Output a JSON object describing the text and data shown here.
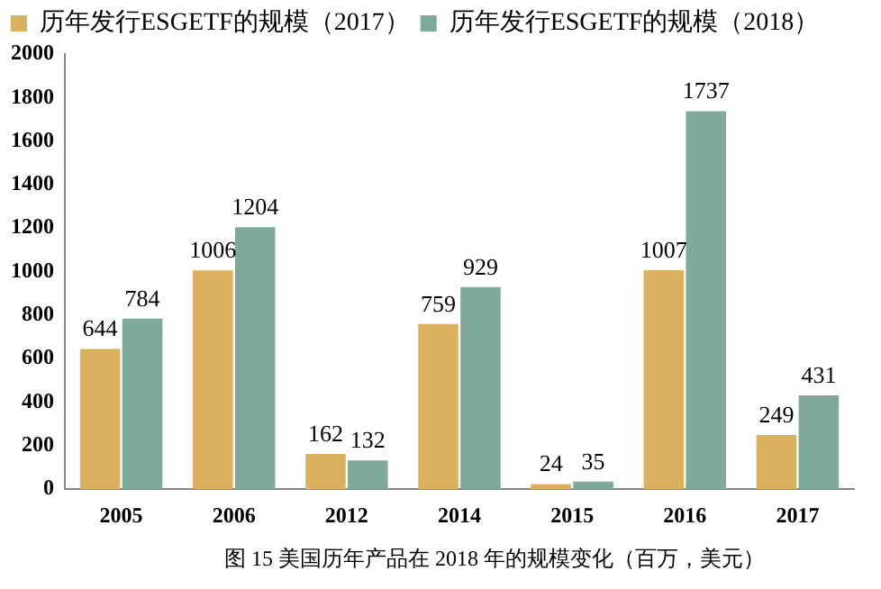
{
  "chart_data": {
    "type": "bar",
    "categories": [
      "2005",
      "2006",
      "2012",
      "2014",
      "2015",
      "2016",
      "2017"
    ],
    "series": [
      {
        "name": "历年发行ESGETF的规模（2017）",
        "color": "#dbb15f",
        "values": [
          644,
          1006,
          162,
          759,
          24,
          1007,
          249
        ]
      },
      {
        "name": "历年发行ESGETF的规模（2018）",
        "color": "#7fa99b",
        "values": [
          784,
          1204,
          132,
          929,
          35,
          1737,
          431
        ]
      }
    ],
    "ylim": [
      0,
      2000
    ],
    "yticks": [
      0,
      200,
      400,
      600,
      800,
      1000,
      1200,
      1400,
      1600,
      1800,
      2000
    ],
    "grid": false,
    "legend": "top left",
    "data_labels": true,
    "annotations": [
      "图 15 美国历年产品在 2018 年的规模变化（百万，美元）"
    ]
  }
}
